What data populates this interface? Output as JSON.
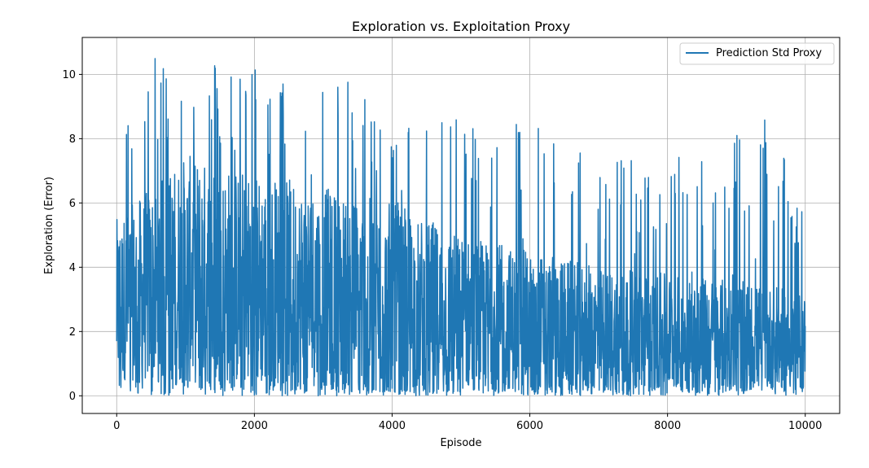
{
  "chart_data": {
    "type": "line",
    "title": "Exploration vs. Exploitation Proxy",
    "xlabel": "Episode",
    "ylabel": "Exploration (Error)",
    "xlim": [
      -500,
      10500
    ],
    "ylim": [
      -0.55,
      11.15
    ],
    "xticks": [
      0,
      2000,
      4000,
      6000,
      8000,
      10000
    ],
    "yticks": [
      0,
      2,
      4,
      6,
      8,
      10
    ],
    "grid": true,
    "legend_position": "top-right",
    "series": [
      {
        "name": "Prediction Std Proxy",
        "color": "#1f77b4",
        "x_range": [
          0,
          10000
        ],
        "envelope": [
          {
            "x": 0,
            "low": 0.2,
            "high": 8.7
          },
          {
            "x": 200,
            "low": 0.05,
            "high": 9.3
          },
          {
            "x": 500,
            "low": 0.0,
            "high": 10.5
          },
          {
            "x": 1000,
            "low": 0.0,
            "high": 10.6
          },
          {
            "x": 1500,
            "low": 0.0,
            "high": 10.4
          },
          {
            "x": 2000,
            "low": 0.0,
            "high": 10.3
          },
          {
            "x": 2500,
            "low": 0.0,
            "high": 9.7
          },
          {
            "x": 3000,
            "low": 0.0,
            "high": 10.0
          },
          {
            "x": 3500,
            "low": 0.0,
            "high": 9.7
          },
          {
            "x": 4000,
            "low": 0.0,
            "high": 8.6
          },
          {
            "x": 4500,
            "low": 0.0,
            "high": 8.8
          },
          {
            "x": 5000,
            "low": 0.0,
            "high": 8.8
          },
          {
            "x": 5500,
            "low": 0.0,
            "high": 9.2
          },
          {
            "x": 6000,
            "low": 0.0,
            "high": 8.3
          },
          {
            "x": 6500,
            "low": 0.0,
            "high": 9.0
          },
          {
            "x": 7000,
            "low": 0.0,
            "high": 7.6
          },
          {
            "x": 7500,
            "low": 0.0,
            "high": 7.6
          },
          {
            "x": 8000,
            "low": 0.0,
            "high": 7.7
          },
          {
            "x": 8500,
            "low": 0.0,
            "high": 7.5
          },
          {
            "x": 9000,
            "low": 0.0,
            "high": 8.5
          },
          {
            "x": 9500,
            "low": 0.0,
            "high": 8.6
          },
          {
            "x": 10000,
            "low": 0.0,
            "high": 5.5
          }
        ],
        "typical_band": [
          {
            "x": 0,
            "low": 0.5,
            "high": 5.5
          },
          {
            "x": 1000,
            "low": 0.4,
            "high": 7.5
          },
          {
            "x": 2000,
            "low": 0.3,
            "high": 7.0
          },
          {
            "x": 3000,
            "low": 0.3,
            "high": 6.5
          },
          {
            "x": 4000,
            "low": 0.2,
            "high": 6.0
          },
          {
            "x": 5000,
            "low": 0.2,
            "high": 5.0
          },
          {
            "x": 6000,
            "low": 0.2,
            "high": 4.5
          },
          {
            "x": 7000,
            "low": 0.2,
            "high": 4.0
          },
          {
            "x": 8000,
            "low": 0.2,
            "high": 3.8
          },
          {
            "x": 9000,
            "low": 0.2,
            "high": 3.6
          },
          {
            "x": 10000,
            "low": 0.2,
            "high": 3.2
          }
        ]
      }
    ]
  }
}
